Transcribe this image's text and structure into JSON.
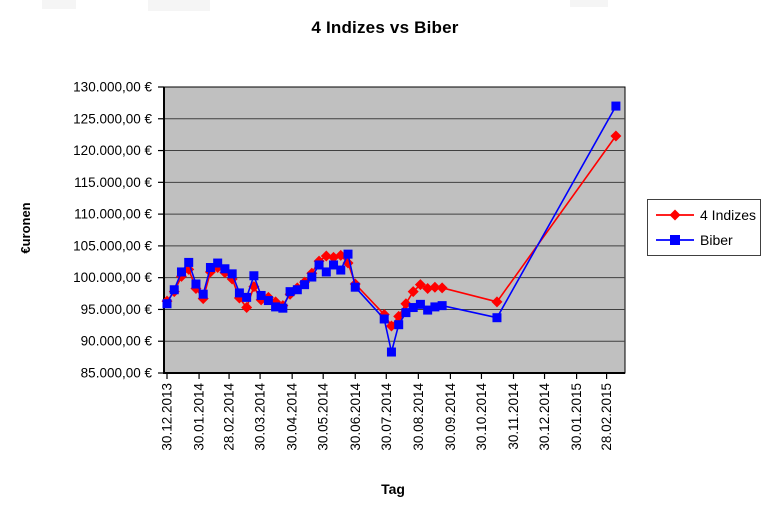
{
  "title": "4 Indizes vs Biber",
  "chart_data": {
    "type": "line",
    "title": "4 Indizes vs Biber",
    "xlabel": "Tag",
    "ylabel": "€uronen",
    "ylim": [
      85000,
      130000
    ],
    "ytick_step": 5000,
    "grid": true,
    "plot_bg": "#c0c0c0",
    "grid_color": "#404040",
    "legend_position": "right",
    "yticks": [
      "130.000,00 €",
      "125.000,00 €",
      "120.000,00 €",
      "115.000,00 €",
      "110.000,00 €",
      "105.000,00 €",
      "100.000,00 €",
      "95.000,00 €",
      "90.000,00 €",
      "85.000,00 €"
    ],
    "xticks": [
      "30.12.2013",
      "30.01.2014",
      "28.02.2014",
      "30.03.2014",
      "30.04.2014",
      "30.05.2014",
      "30.06.2014",
      "30.07.2014",
      "30.08.2014",
      "30.09.2014",
      "30.10.2014",
      "30.11.2014",
      "30.12.2014",
      "30.01.2015",
      "28.02.2015"
    ],
    "x": [
      "30.12.2013",
      "06.01.2014",
      "13.01.2014",
      "20.01.2014",
      "27.01.2014",
      "03.02.2014",
      "10.02.2014",
      "17.02.2014",
      "24.02.2014",
      "03.03.2014",
      "10.03.2014",
      "17.03.2014",
      "24.03.2014",
      "31.03.2014",
      "07.04.2014",
      "14.04.2014",
      "21.04.2014",
      "28.04.2014",
      "05.05.2014",
      "12.05.2014",
      "19.05.2014",
      "26.05.2014",
      "02.06.2014",
      "09.06.2014",
      "16.06.2014",
      "23.06.2014",
      "30.06.2014",
      "28.07.2014",
      "04.08.2014",
      "11.08.2014",
      "18.08.2014",
      "25.08.2014",
      "01.09.2014",
      "08.09.2014",
      "15.09.2014",
      "22.09.2014",
      "14.11.2014",
      "09.03.2015"
    ],
    "series": [
      {
        "name": "4 Indizes",
        "color": "#ff0000",
        "marker": "diamond",
        "values": [
          96300,
          97800,
          100200,
          101300,
          98300,
          96700,
          100900,
          101600,
          100800,
          99800,
          96800,
          95300,
          98600,
          96500,
          96900,
          96200,
          95600,
          97400,
          98400,
          99300,
          100700,
          102600,
          103400,
          103200,
          103500,
          102300,
          99000,
          94200,
          92400,
          93900,
          95900,
          97800,
          98900,
          98300,
          98500,
          98400,
          96200,
          122300
        ]
      },
      {
        "name": "Biber",
        "color": "#0000ff",
        "marker": "square",
        "values": [
          95900,
          98100,
          100900,
          102400,
          99000,
          97400,
          101600,
          102300,
          101400,
          100600,
          97600,
          96900,
          100300,
          97200,
          96400,
          95400,
          95200,
          97800,
          98100,
          98900,
          100100,
          102000,
          100900,
          102000,
          101200,
          103700,
          98500,
          93500,
          88300,
          92600,
          94500,
          95300,
          95800,
          94900,
          95400,
          95600,
          93700,
          127000
        ]
      }
    ]
  }
}
